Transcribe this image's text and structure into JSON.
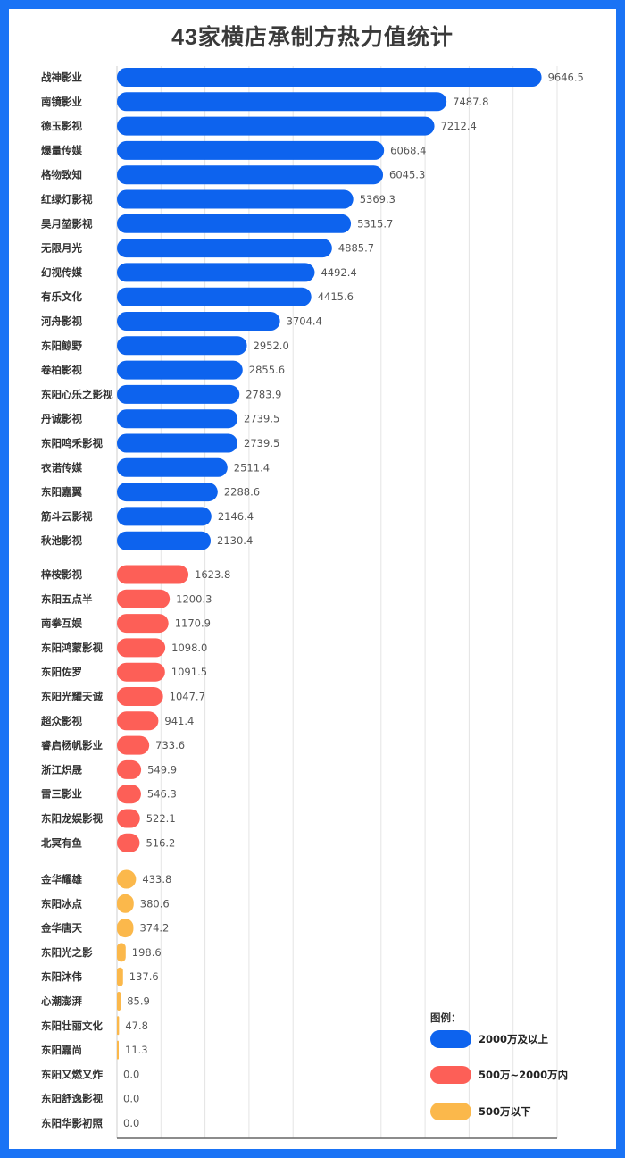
{
  "chart_data": {
    "type": "bar",
    "orientation": "horizontal",
    "title": "43家横店承制方热力值统计",
    "xlim": [
      0,
      10000
    ],
    "grid": true,
    "legend_placement": "bottom-right",
    "legend_title": "图例：",
    "groups": [
      {
        "name": "2000万及以上",
        "color": "#0d63ee"
      },
      {
        "name": "500万~2000万内",
        "color": "#fd5f57"
      },
      {
        "name": "500万以下",
        "color": "#fbb84b"
      }
    ],
    "categories": [
      "战神影业",
      "南镜影业",
      "德玉影视",
      "爆量传媒",
      "格物致知",
      "红绿灯影视",
      "昊月堃影视",
      "无限月光",
      "幻视传媒",
      "有乐文化",
      "河舟影视",
      "东阳鲸野",
      "卷柏影视",
      "东阳心乐之影视",
      "丹诚影视",
      "东阳鸣禾影视",
      "衣诺传媒",
      "东阳嘉翼",
      "筋斗云影视",
      "秋池影视",
      "梓桉影视",
      "东阳五点半",
      "南拳互娱",
      "东阳鸿蒙影视",
      "东阳佐罗",
      "东阳光耀天诚",
      "超众影视",
      "睿启杨帆影业",
      "浙江炽晟",
      "雷三影业",
      "东阳龙娱影视",
      "北冥有鱼",
      "金华耀雄",
      "东阳冰点",
      "金华唐天",
      "东阳光之影",
      "东阳沐伟",
      "心潮澎湃",
      "东阳壮丽文化",
      "东阳嘉尚",
      "东阳又燃又炸",
      "东阳舒逸影视",
      "东阳华影初照"
    ],
    "values": [
      9646.5,
      7487.8,
      7212.4,
      6068.4,
      6045.3,
      5369.3,
      5315.7,
      4885.7,
      4492.4,
      4415.6,
      3704.4,
      2952.0,
      2855.6,
      2783.9,
      2739.5,
      2739.5,
      2511.4,
      2288.6,
      2146.4,
      2130.4,
      1623.8,
      1200.3,
      1170.9,
      1098.0,
      1091.5,
      1047.7,
      941.4,
      733.6,
      549.9,
      546.3,
      522.1,
      516.2,
      433.8,
      380.6,
      374.2,
      198.6,
      137.6,
      85.9,
      47.8,
      11.3,
      0.0,
      0.0,
      0.0
    ],
    "value_labels": [
      "9646.5",
      "7487.8",
      "7212.4",
      "6068.4",
      "6045.3",
      "5369.3",
      "5315.7",
      "4885.7",
      "4492.4",
      "4415.6",
      "3704.4",
      "2952.0",
      "2855.6",
      "2783.9",
      "2739.5",
      "2739.5",
      "2511.4",
      "2288.6",
      "2146.4",
      "2130.4",
      "1623.8",
      "1200.3",
      "1170.9",
      "1098.0",
      "1091.5",
      "1047.7",
      "941.4",
      "733.6",
      "549.9",
      "546.3",
      "522.1",
      "516.2",
      "433.8",
      "380.6",
      "374.2",
      "198.6",
      "137.6",
      "85.9",
      "47.8",
      "11.3",
      "0.0",
      "0.0",
      "0.0"
    ],
    "group_index": [
      0,
      0,
      0,
      0,
      0,
      0,
      0,
      0,
      0,
      0,
      0,
      0,
      0,
      0,
      0,
      0,
      0,
      0,
      0,
      0,
      1,
      1,
      1,
      1,
      1,
      1,
      1,
      1,
      1,
      1,
      1,
      1,
      2,
      2,
      2,
      2,
      2,
      2,
      2,
      2,
      2,
      2,
      2
    ]
  }
}
